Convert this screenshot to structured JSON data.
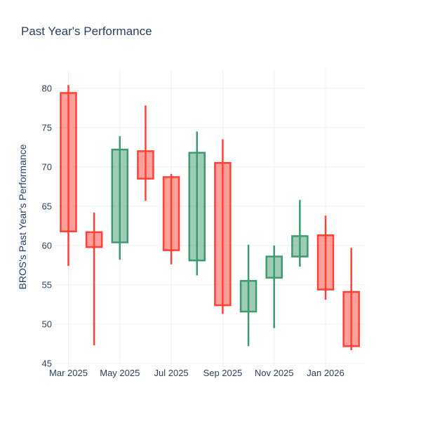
{
  "chart_data": {
    "type": "candlestick",
    "title": "Past Year's Performance",
    "xlabel": "",
    "ylabel": "BROS's Past Year's Performance",
    "categories": [
      "Mar 2025",
      "Apr 2025",
      "May 2025",
      "Jun 2025",
      "Jul 2025",
      "Aug 2025",
      "Sep 2025",
      "Oct 2025",
      "Nov 2025",
      "Dec 2025",
      "Jan 2026",
      "Feb 2026"
    ],
    "candles": [
      {
        "x": "Mar 2025",
        "open": 79.4,
        "high": 80.4,
        "low": 57.4,
        "close": 61.8
      },
      {
        "x": "Apr 2025",
        "open": 61.7,
        "high": 64.2,
        "low": 47.3,
        "close": 59.8
      },
      {
        "x": "May 2025",
        "open": 60.4,
        "high": 73.9,
        "low": 58.2,
        "close": 72.2
      },
      {
        "x": "Jun 2025",
        "open": 72.0,
        "high": 77.8,
        "low": 65.7,
        "close": 68.5
      },
      {
        "x": "Jul 2025",
        "open": 68.7,
        "high": 69.1,
        "low": 57.6,
        "close": 59.4
      },
      {
        "x": "Aug 2025",
        "open": 58.1,
        "high": 74.5,
        "low": 56.2,
        "close": 71.8
      },
      {
        "x": "Sep 2025",
        "open": 70.5,
        "high": 73.5,
        "low": 51.3,
        "close": 52.4
      },
      {
        "x": "Oct 2025",
        "open": 51.6,
        "high": 60.1,
        "low": 47.2,
        "close": 55.5
      },
      {
        "x": "Nov 2025",
        "open": 55.9,
        "high": 60.0,
        "low": 49.5,
        "close": 58.6
      },
      {
        "x": "Dec 2025",
        "open": 58.6,
        "high": 65.8,
        "low": 57.3,
        "close": 61.2
      },
      {
        "x": "Jan 2026",
        "open": 61.3,
        "high": 63.8,
        "low": 53.1,
        "close": 54.4
      },
      {
        "x": "Feb 2026",
        "open": 54.1,
        "high": 59.7,
        "low": 46.7,
        "close": 47.2
      }
    ],
    "x_tick_labels": [
      "Mar 2025",
      "May 2025",
      "Jul 2025",
      "Sep 2025",
      "Nov 2025",
      "Jan 2026"
    ],
    "y_ticks": [
      45,
      50,
      55,
      60,
      65,
      70,
      75,
      80
    ],
    "ylim": [
      45,
      82.3
    ],
    "grid": true,
    "legend": false,
    "colors": {
      "increasing_line": "#3D9970",
      "increasing_fill": "#3D997080",
      "decreasing_line": "#FF4136",
      "decreasing_fill": "#FF413680",
      "grid": "#EBF0F8",
      "text": "#2a3f5f",
      "background": "#ffffff"
    }
  }
}
